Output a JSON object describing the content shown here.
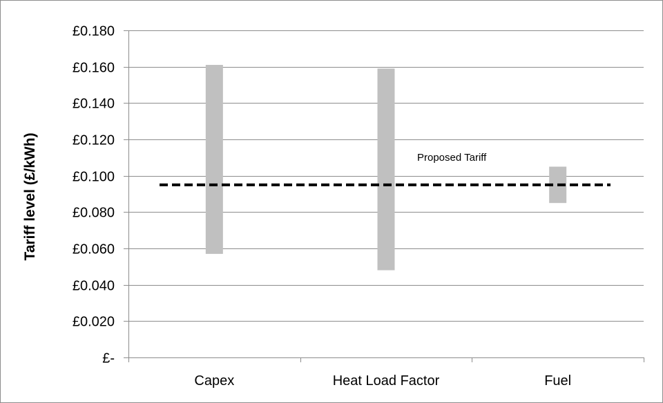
{
  "chart_data": {
    "type": "bar",
    "subtype": "floating-range",
    "title": "",
    "xlabel": "",
    "ylabel": "Tariff level (£/kWh)",
    "ylim": [
      0,
      0.18
    ],
    "ytick_values": [
      0,
      0.02,
      0.04,
      0.06,
      0.08,
      0.1,
      0.12,
      0.14,
      0.16,
      0.18
    ],
    "ytick_labels": [
      "£-",
      "£0.020",
      "£0.040",
      "£0.060",
      "£0.080",
      "£0.100",
      "£0.120",
      "£0.140",
      "£0.160",
      "£0.180"
    ],
    "categories": [
      "Capex",
      "Heat Load Factor",
      "Fuel"
    ],
    "series": [
      {
        "low": [
          0.057,
          0.048,
          0.085
        ],
        "high": [
          0.161,
          0.159,
          0.105
        ]
      }
    ],
    "reference_line": {
      "label": "Proposed Tariff",
      "value": 0.095,
      "style": "dashed"
    },
    "grid": true,
    "legend": "none",
    "colors": {
      "bar": "#c0c0c0",
      "grid": "#8c8c8c",
      "axis": "#8c8c8c",
      "reference": "#000000",
      "frame": "#8c8c8c"
    }
  }
}
